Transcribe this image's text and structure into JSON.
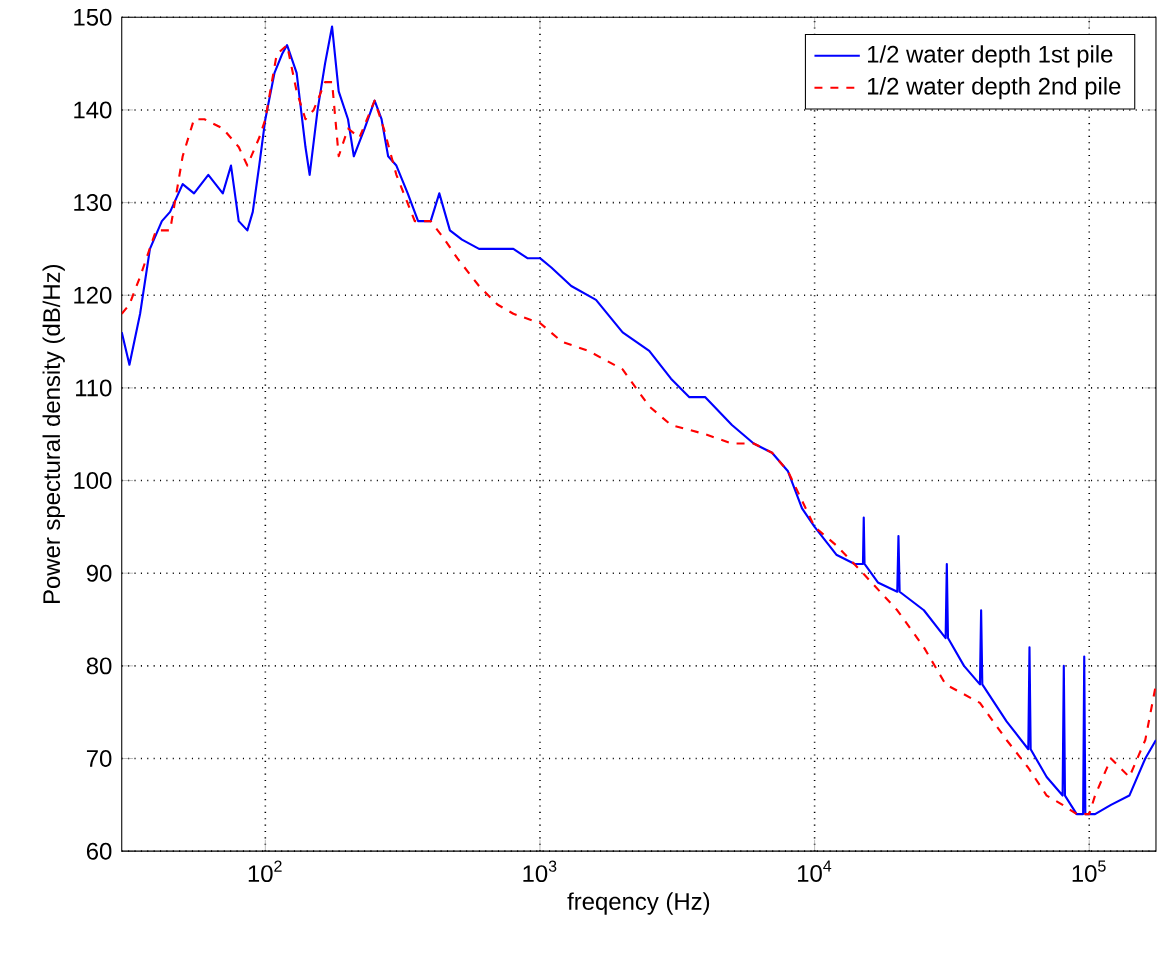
{
  "chart_data": {
    "type": "line",
    "xlabel": "freqency (Hz)",
    "ylabel": "Power spectural density (dB/Hz)",
    "log": "x",
    "grid": true,
    "legend": "top right",
    "xlim": [
      30,
      175000
    ],
    "ylim": [
      60,
      150
    ],
    "xticks": [
      {
        "value": 100,
        "label": "10$^{2}$"
      },
      {
        "value": 1000,
        "label": "10$^{3}$"
      },
      {
        "value": 10000,
        "label": "10$^{4}$"
      },
      {
        "value": 100000,
        "label": "10$^{5}$"
      }
    ],
    "yticks": [
      60,
      70,
      80,
      90,
      100,
      110,
      120,
      130,
      140,
      150
    ],
    "series": [
      {
        "name": "1/2 water depth 1st pile",
        "color": "#0000ff",
        "line_style": "solid",
        "x": [
          30,
          32,
          35,
          38,
          42,
          45,
          50,
          55,
          62,
          70,
          75,
          80,
          86,
          90,
          95,
          100,
          108,
          115,
          120,
          130,
          140,
          145,
          155,
          165,
          175,
          185,
          200,
          210,
          230,
          250,
          265,
          280,
          300,
          330,
          360,
          400,
          430,
          470,
          520,
          600,
          700,
          800,
          900,
          1000,
          1100,
          1300,
          1600,
          2000,
          2500,
          3000,
          3500,
          4000,
          5000,
          6000,
          7000,
          8000,
          9000,
          10000,
          12000,
          14000,
          15000,
          15100,
          15200,
          17000,
          20000,
          20200,
          20400,
          25000,
          30000,
          30300,
          30600,
          35000,
          40000,
          40400,
          40800,
          50000,
          60000,
          60600,
          61200,
          70000,
          80000,
          80800,
          81600,
          90000,
          95000,
          95900,
          96800,
          100000,
          105000,
          120000,
          140000,
          160000,
          175000
        ],
        "values": [
          116,
          112.5,
          118,
          125,
          128,
          129,
          132,
          131,
          133,
          131,
          134,
          128,
          127,
          129,
          134,
          139,
          144,
          146,
          147,
          144,
          136,
          133,
          140,
          145,
          149,
          142,
          139,
          135,
          138,
          141,
          139,
          135,
          134,
          131,
          128,
          128,
          131,
          127,
          126,
          125,
          125,
          125,
          124,
          124,
          123,
          121,
          119.5,
          116,
          114,
          111,
          109,
          109,
          106,
          104,
          103,
          101,
          97,
          95,
          92,
          91,
          91,
          96,
          91,
          89,
          88,
          94,
          88,
          86,
          83,
          91,
          83,
          80,
          78,
          86,
          78,
          74,
          71,
          82,
          71,
          68,
          66,
          80,
          66,
          64,
          64,
          81,
          64,
          64,
          64,
          65,
          66,
          70,
          72
        ]
      },
      {
        "name": "1/2 water depth 2nd pile",
        "color": "#ff0000",
        "line_style": "dashed",
        "x": [
          30,
          32,
          35,
          40,
          45,
          50,
          55,
          60,
          70,
          80,
          86,
          95,
          100,
          110,
          120,
          130,
          140,
          150,
          165,
          175,
          185,
          200,
          220,
          250,
          270,
          300,
          350,
          400,
          450,
          500,
          600,
          700,
          800,
          1000,
          1200,
          1500,
          2000,
          2500,
          3000,
          4000,
          5000,
          6000,
          7000,
          8000,
          10000,
          12000,
          15000,
          20000,
          25000,
          30000,
          40000,
          50000,
          60000,
          70000,
          80000,
          90000,
          100000,
          105000,
          120000,
          140000,
          160000,
          175000
        ],
        "values": [
          118,
          119,
          122,
          127,
          127,
          135,
          139,
          139,
          138,
          136,
          134,
          137,
          139,
          146,
          147,
          142,
          139,
          140,
          143,
          143,
          135,
          138,
          137,
          141,
          138,
          133,
          128,
          128,
          126,
          124,
          121,
          119,
          118,
          117,
          115,
          114,
          112,
          108,
          106,
          105,
          104,
          104,
          103,
          101,
          95,
          93,
          90,
          86,
          82,
          78,
          76,
          72,
          69,
          66,
          65,
          64,
          64,
          66,
          70,
          68,
          72,
          78
        ]
      }
    ]
  }
}
